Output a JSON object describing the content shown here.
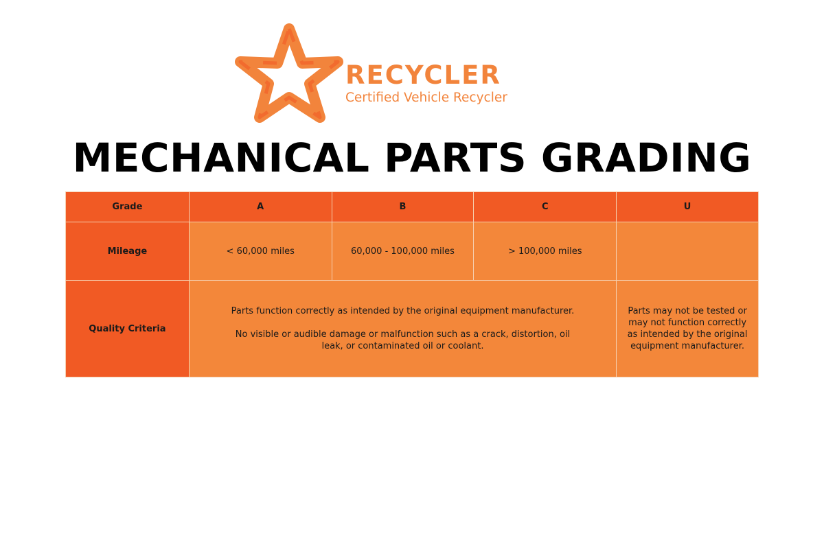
{
  "logo": {
    "icon": "star-recycle-arrows",
    "brand": "RECYCLER",
    "tagline": "Certified Vehicle Recycler",
    "colors": {
      "primary": "#F2843C",
      "dark": "#F15A24"
    }
  },
  "title": "MECHANICAL PARTS GRADING",
  "table": {
    "headers": [
      "Grade",
      "A",
      "B",
      "C",
      "U"
    ],
    "mileage": {
      "label": "Mileage",
      "values": [
        "< 60,000 miles",
        "60,000 - 100,000 miles",
        "> 100,000 miles",
        ""
      ]
    },
    "quality": {
      "label": "Quality Criteria",
      "abc": [
        "Parts function correctly as intended by the original equipment manufacturer.",
        "No visible or audible damage or malfunction such as a crack, distortion, oil leak, or contaminated oil or coolant."
      ],
      "u": "Parts may not be tested or may not function correctly as intended by the original equipment manufacturer."
    }
  }
}
